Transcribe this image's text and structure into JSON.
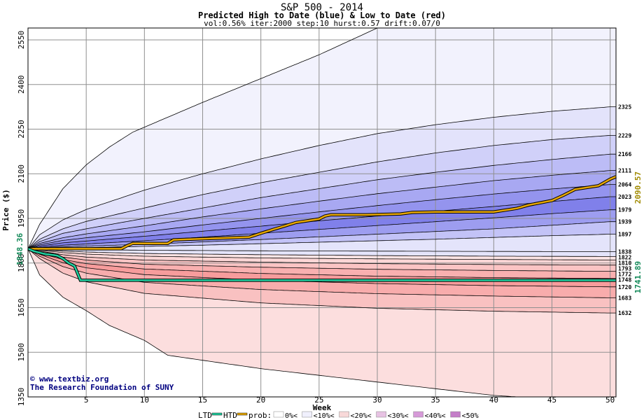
{
  "chart_data": {
    "type": "area",
    "title": "S&P 500 - 2014",
    "subtitle": "Predicted High to Date (blue) &  Low to Date (red)",
    "params": "vol:0.56% iter:2000 step:10 hurst:0.57 drift:0.07/0",
    "xlabel": "Week",
    "ylabel": "Price ($)",
    "xlim": [
      0,
      50.5
    ],
    "ylim": [
      1350,
      2590
    ],
    "x_ticks": [
      5,
      10,
      15,
      20,
      25,
      30,
      35,
      40,
      45,
      50
    ],
    "y_ticks": [
      1350,
      1500,
      1650,
      1800,
      1950,
      2100,
      2250,
      2400,
      2550
    ],
    "grid": true,
    "start_value": "1848.36",
    "high_to_date_value": "2090.57",
    "low_to_date_value": "1741.89",
    "level_labels": [
      2325,
      2229,
      2166,
      2111,
      2064,
      2023,
      1979,
      1939,
      1897,
      1838,
      1822,
      1810,
      1793,
      1772,
      1748,
      1720,
      1683,
      1632
    ],
    "high_band_curves": [
      {
        "label": null,
        "x": [
          0,
          1,
          3,
          5,
          7,
          9,
          12,
          15,
          20,
          25,
          30,
          35,
          40,
          45,
          50
        ],
        "y": [
          1848,
          1930,
          2050,
          2130,
          2190,
          2240,
          2290,
          2340,
          2420,
          2500,
          2590,
          2590,
          2590,
          2590,
          2590
        ]
      },
      {
        "label": "2325",
        "x": [
          0,
          1,
          3,
          5,
          10,
          15,
          20,
          25,
          30,
          35,
          40,
          45,
          50
        ],
        "y": [
          1848,
          1895,
          1945,
          1980,
          2045,
          2100,
          2150,
          2195,
          2235,
          2265,
          2290,
          2310,
          2325
        ]
      },
      {
        "label": "2229",
        "x": [
          0,
          1,
          3,
          5,
          10,
          15,
          20,
          25,
          30,
          35,
          40,
          45,
          50
        ],
        "y": [
          1848,
          1880,
          1915,
          1940,
          1985,
          2030,
          2070,
          2105,
          2140,
          2170,
          2195,
          2215,
          2229
        ]
      },
      {
        "label": "2166",
        "x": [
          0,
          1,
          3,
          5,
          10,
          15,
          20,
          25,
          30,
          35,
          40,
          45,
          50
        ],
        "y": [
          1848,
          1872,
          1900,
          1915,
          1950,
          1985,
          2020,
          2050,
          2080,
          2105,
          2128,
          2148,
          2166
        ]
      },
      {
        "label": "2111",
        "x": [
          0,
          1,
          3,
          5,
          10,
          15,
          20,
          25,
          30,
          35,
          40,
          45,
          50
        ],
        "y": [
          1848,
          1866,
          1885,
          1898,
          1925,
          1955,
          1982,
          2008,
          2033,
          2055,
          2077,
          2095,
          2111
        ]
      },
      {
        "label": "2064",
        "x": [
          0,
          1,
          3,
          5,
          10,
          15,
          20,
          25,
          30,
          35,
          40,
          45,
          50
        ],
        "y": [
          1848,
          1861,
          1876,
          1885,
          1905,
          1928,
          1950,
          1972,
          1993,
          2013,
          2032,
          2049,
          2064
        ]
      },
      {
        "label": "2023",
        "x": [
          0,
          1,
          3,
          5,
          10,
          15,
          20,
          25,
          30,
          35,
          40,
          45,
          50
        ],
        "y": [
          1848,
          1857,
          1868,
          1874,
          1890,
          1907,
          1924,
          1942,
          1958,
          1974,
          1990,
          2007,
          2023
        ]
      },
      {
        "label": "1979",
        "x": [
          0,
          1,
          3,
          5,
          10,
          15,
          20,
          25,
          30,
          35,
          40,
          45,
          50
        ],
        "y": [
          1848,
          1853,
          1860,
          1864,
          1875,
          1887,
          1900,
          1913,
          1926,
          1939,
          1952,
          1966,
          1979
        ]
      },
      {
        "label": "1939",
        "x": [
          0,
          1,
          3,
          5,
          10,
          15,
          20,
          25,
          30,
          35,
          40,
          45,
          50
        ],
        "y": [
          1848,
          1851,
          1855,
          1857,
          1863,
          1871,
          1879,
          1888,
          1897,
          1906,
          1915,
          1927,
          1939
        ]
      },
      {
        "label": "1897",
        "x": [
          0,
          1,
          3,
          5,
          10,
          15,
          20,
          25,
          30,
          35,
          40,
          45,
          50
        ],
        "y": [
          1848,
          1849,
          1851,
          1852,
          1856,
          1860,
          1865,
          1870,
          1875,
          1880,
          1886,
          1892,
          1897
        ]
      },
      {
        "label": "1838",
        "x": [
          0,
          2,
          5,
          10,
          20,
          30,
          40,
          50
        ],
        "y": [
          1848,
          1846,
          1845,
          1843,
          1841,
          1840,
          1839,
          1838
        ]
      }
    ],
    "low_band_curves": [
      {
        "label": "1822",
        "x": [
          0,
          1,
          3,
          5,
          10,
          20,
          30,
          40,
          50
        ],
        "y": [
          1848,
          1845,
          1840,
          1837,
          1832,
          1828,
          1825,
          1823,
          1822
        ]
      },
      {
        "label": "1810",
        "x": [
          0,
          1,
          3,
          5,
          10,
          20,
          30,
          40,
          50
        ],
        "y": [
          1848,
          1843,
          1835,
          1830,
          1823,
          1817,
          1814,
          1812,
          1810
        ]
      },
      {
        "label": "1793",
        "x": [
          0,
          1,
          3,
          5,
          10,
          20,
          30,
          40,
          50
        ],
        "y": [
          1848,
          1840,
          1828,
          1820,
          1810,
          1803,
          1798,
          1795,
          1793
        ]
      },
      {
        "label": "1772",
        "x": [
          0,
          1,
          3,
          5,
          10,
          20,
          30,
          40,
          50
        ],
        "y": [
          1848,
          1837,
          1820,
          1810,
          1796,
          1786,
          1779,
          1775,
          1772
        ]
      },
      {
        "label": "1748",
        "x": [
          0,
          1,
          3,
          5,
          10,
          20,
          30,
          40,
          50
        ],
        "y": [
          1848,
          1833,
          1812,
          1798,
          1780,
          1765,
          1756,
          1751,
          1748
        ]
      },
      {
        "label": "1720",
        "x": [
          0,
          1,
          3,
          5,
          10,
          20,
          30,
          40,
          50
        ],
        "y": [
          1848,
          1829,
          1801,
          1784,
          1761,
          1742,
          1731,
          1724,
          1720
        ]
      },
      {
        "label": "1683",
        "x": [
          0,
          1,
          3,
          5,
          10,
          20,
          30,
          40,
          50
        ],
        "y": [
          1848,
          1823,
          1788,
          1766,
          1735,
          1711,
          1697,
          1689,
          1683
        ]
      },
      {
        "label": "1632",
        "x": [
          0,
          1,
          3,
          5,
          10,
          20,
          30,
          40,
          50
        ],
        "y": [
          1848,
          1815,
          1766,
          1737,
          1698,
          1666,
          1648,
          1638,
          1632
        ]
      },
      {
        "label": null,
        "x": [
          0,
          1,
          3,
          5,
          7,
          10,
          12,
          20,
          30,
          40,
          50
        ],
        "y": [
          1848,
          1760,
          1685,
          1640,
          1590,
          1540,
          1490,
          1445,
          1400,
          1355,
          1330
        ]
      }
    ],
    "series": [
      {
        "name": "HTD",
        "x": [
          0,
          8,
          8.5,
          9,
          12,
          12.5,
          19,
          20,
          21,
          22,
          23,
          25,
          25.5,
          26,
          29,
          32,
          33,
          35,
          40,
          42,
          43,
          45,
          46,
          47,
          49,
          50,
          50.5
        ],
        "y": [
          1848,
          1848,
          1858,
          1866,
          1866,
          1878,
          1887,
          1900,
          1912,
          1924,
          1936,
          1948,
          1958,
          1962,
          1962,
          1965,
          1970,
          1972,
          1972,
          1984,
          1995,
          2010,
          2028,
          2048,
          2060,
          2082,
          2090.57
        ]
      },
      {
        "name": "LTD",
        "x": [
          0,
          0.5,
          1,
          1.5,
          2,
          2.5,
          3,
          3.5,
          4,
          4.5,
          5,
          10,
          20,
          30,
          40,
          50,
          50.5
        ],
        "y": [
          1848,
          1840,
          1835,
          1830,
          1828,
          1825,
          1815,
          1800,
          1790,
          1742,
          1742,
          1742,
          1742,
          1742,
          1742,
          1742,
          1741.89
        ]
      }
    ],
    "series_colors": {
      "HTD": "#e8a800",
      "LTD": "#20d0a0"
    },
    "high_band_fills": [
      "#f2f2fd",
      "#e3e3fb",
      "#d0d0f9",
      "#bcbcf6",
      "#a8a8f2",
      "#9494ee",
      "#8080ea",
      "#9d9df0",
      "#c3c3f7",
      "#e4e4fb"
    ],
    "low_band_fills": [
      "#fde4e4",
      "#fcd6d6",
      "#fbc4c4",
      "#f9b0b0",
      "#f79c9c",
      "#f8acac",
      "#f9c1c1",
      "#fcdede"
    ],
    "legend": {
      "ltd": "LTD",
      "htd": "HTD",
      "prob": "prob:",
      "bins": [
        {
          "label": "0%<",
          "color": "#ffffff"
        },
        {
          "label": "<10%<",
          "color": "#f0f0fd"
        },
        {
          "label": "<20%<",
          "color": "#f8d8d8"
        },
        {
          "label": "<30%<",
          "color": "#e7c2e3"
        },
        {
          "label": "<40%<",
          "color": "#d69ad8"
        },
        {
          "label": "<50%",
          "color": "#c47ec8"
        }
      ]
    },
    "credit_lines": [
      "www.textbiz.org",
      "The Research Foundation of SUNY"
    ],
    "copyright_symbol": "©"
  }
}
